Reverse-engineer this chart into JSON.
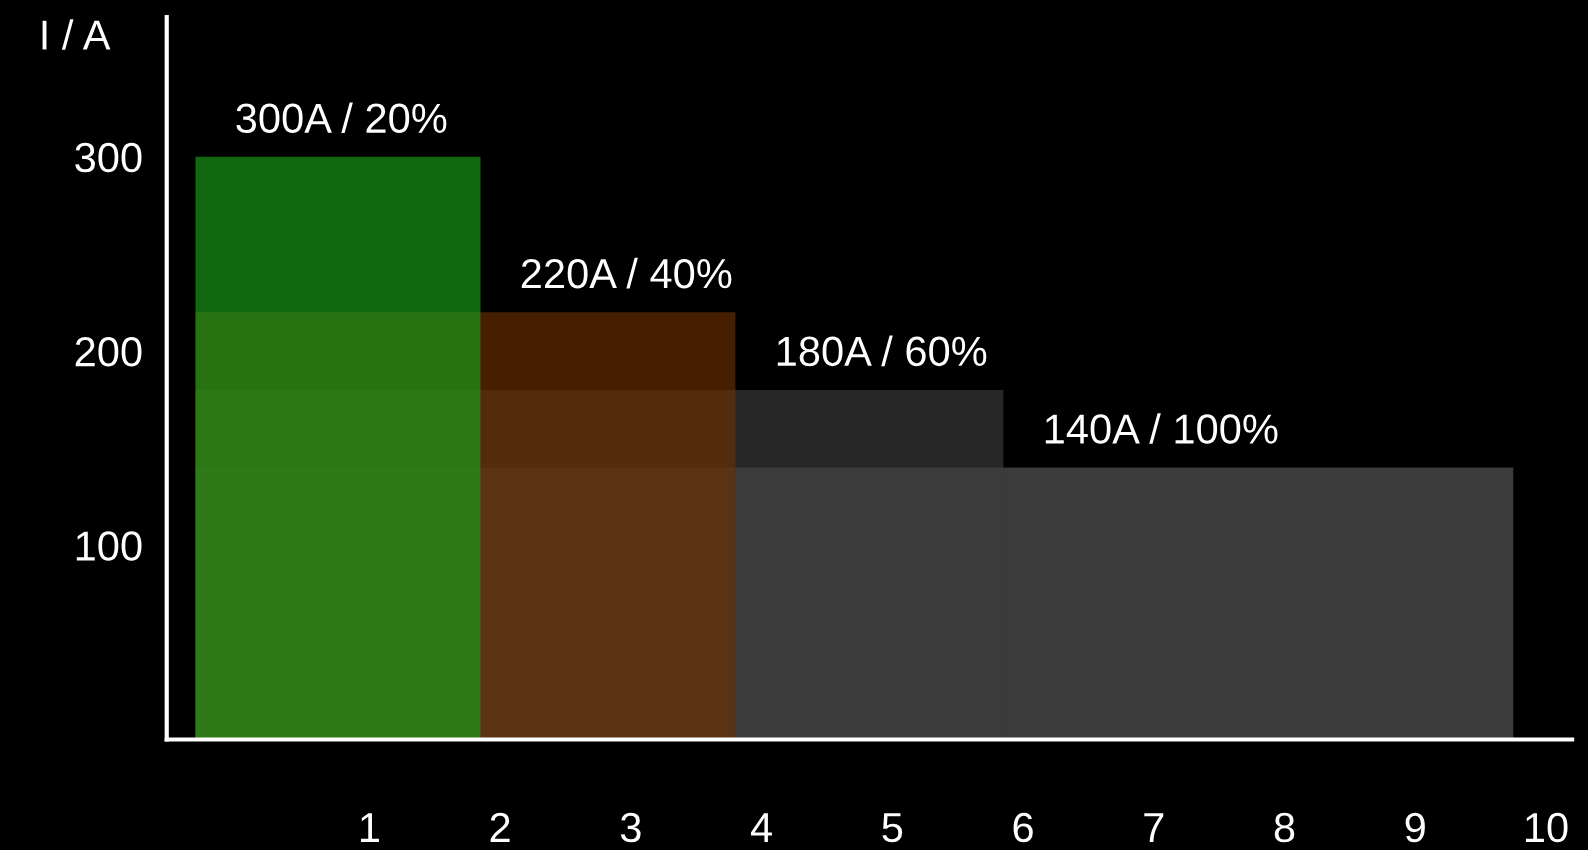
{
  "chart_data": {
    "type": "area",
    "ylabel": "I / A",
    "series": [
      {
        "name": "140A / 100%",
        "color": "#5a5a5a",
        "x": [
          -0.33,
          9.75
        ],
        "values": [
          140,
          140
        ]
      },
      {
        "name": "180A / 60%",
        "color": "#3c3c3c",
        "x": [
          -0.33,
          5.85
        ],
        "values": [
          180,
          180
        ]
      },
      {
        "name": "220A / 40%",
        "color": "#6a3000",
        "x": [
          -0.33,
          3.8
        ],
        "values": [
          220,
          220
        ]
      },
      {
        "name": "300A / 20%",
        "color": "#1aa01a",
        "x": [
          -0.33,
          1.85
        ],
        "values": [
          300,
          300
        ]
      }
    ],
    "xlim": [
      -0.55,
      10.2
    ],
    "ylim": [
      0,
      372
    ],
    "xticks": [
      1,
      2,
      3,
      4,
      5,
      6,
      7,
      8,
      9,
      10
    ],
    "yticks": [
      100,
      200,
      300
    ],
    "grid": false,
    "legend": false
  }
}
